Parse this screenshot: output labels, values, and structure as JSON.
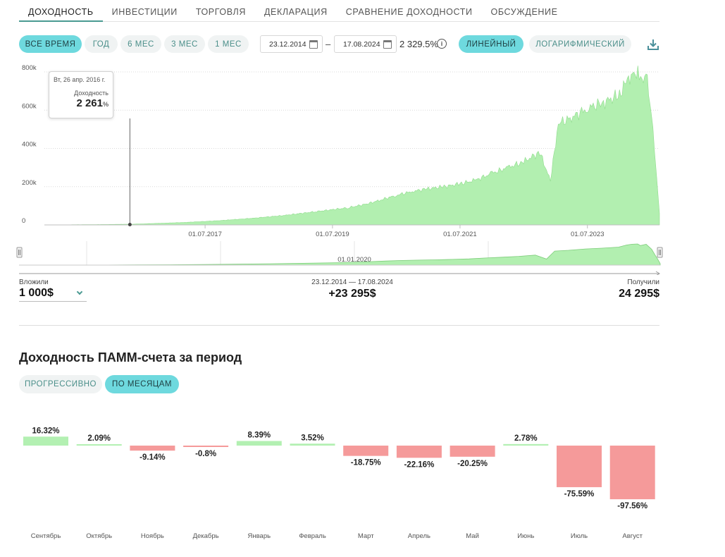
{
  "tabs": [
    {
      "label": "Доходность",
      "active": true
    },
    {
      "label": "Инвестиции",
      "active": false
    },
    {
      "label": "Торговля",
      "active": false
    },
    {
      "label": "Декларация",
      "active": false
    },
    {
      "label": "Сравнение доходности",
      "active": false
    },
    {
      "label": "Обсуждение",
      "active": false
    }
  ],
  "periods": [
    {
      "label": "Все время",
      "active": true
    },
    {
      "label": "Год",
      "active": false
    },
    {
      "label": "6 мес",
      "active": false
    },
    {
      "label": "3 мес",
      "active": false
    },
    {
      "label": "1 мес",
      "active": false
    }
  ],
  "date_range": {
    "from": "23.12.2014",
    "to": "17.08.2024",
    "dash": "–"
  },
  "total_return": "2 329.5%",
  "scale_modes": [
    {
      "label": "Линейный",
      "active": true
    },
    {
      "label": "Логарифмический",
      "active": false
    }
  ],
  "colors": {
    "accent": "#6ed9de",
    "positive": "#b3f0b2",
    "negative": "#f59a9a",
    "area": "#b2efb0",
    "area_line": "#8fdc8c"
  },
  "chart_data": {
    "type": "area",
    "y_ticks": [
      "800k",
      "600k",
      "400k",
      "200k",
      "0"
    ],
    "ylim": [
      0,
      800000
    ],
    "x_ticks": [
      "01.07.2017",
      "01.07.2019",
      "01.07.2021",
      "01.07.2023"
    ],
    "navigator_label": "01.01.2020",
    "series": [
      {
        "x": [
          "2014-12-23",
          "2015-06-01",
          "2016-01-01",
          "2016-04-26",
          "2016-10-01",
          "2017-04-01",
          "2017-10-01",
          "2018-04-01",
          "2018-10-01",
          "2019-04-01",
          "2019-10-01",
          "2020-01-15",
          "2020-04-01",
          "2020-07-01",
          "2020-10-01",
          "2021-01-01",
          "2021-04-01",
          "2021-07-01",
          "2021-10-01",
          "2022-01-01",
          "2022-04-01",
          "2022-07-01",
          "2022-10-01",
          "2022-12-01",
          "2023-01-15",
          "2023-04-01",
          "2023-07-01",
          "2023-10-01",
          "2024-01-01",
          "2024-02-15",
          "2024-03-15",
          "2024-04-15",
          "2024-05-01",
          "2024-06-01",
          "2024-07-01",
          "2024-07-20",
          "2024-08-01",
          "2024-08-17"
        ],
        "values": [
          0,
          1000,
          2500,
          3500,
          8000,
          14000,
          23000,
          35000,
          50000,
          70000,
          90000,
          110000,
          130000,
          155000,
          175000,
          190000,
          200000,
          215000,
          235000,
          270000,
          300000,
          330000,
          380000,
          230000,
          530000,
          560000,
          610000,
          640000,
          680000,
          760000,
          790000,
          800000,
          740000,
          790000,
          600000,
          380000,
          250000,
          60000
        ]
      }
    ]
  },
  "tooltip": {
    "date": "Вт, 26 апр. 2016 г.",
    "label": "Доходность",
    "value": "2 261",
    "unit": "%",
    "x": "2016-04-26"
  },
  "summary": {
    "invested_label": "Вложили",
    "invested_value": "1 000$",
    "period_label": "23.12.2014 — 17.08.2024",
    "profit_value": "+23 295$",
    "received_label": "Получили",
    "received_value": "24 295$"
  },
  "section_title": "Доходность ПАММ-счета за период",
  "bar_modes": [
    {
      "label": "Прогрессивно",
      "active": false
    },
    {
      "label": "По месяцам",
      "active": true
    }
  ],
  "bar_chart": {
    "type": "bar",
    "categories": [
      "Сентябрь",
      "Октябрь",
      "Ноябрь",
      "Декабрь",
      "Январь",
      "Февраль",
      "Март",
      "Апрель",
      "Май",
      "Июнь",
      "Июль",
      "Август"
    ],
    "values": [
      16.32,
      2.09,
      -9.14,
      -0.8,
      8.39,
      3.52,
      -18.75,
      -22.16,
      -20.25,
      2.78,
      -75.59,
      -97.56
    ],
    "labels": [
      "16.32%",
      "2.09%",
      "-9.14%",
      "-0.8%",
      "8.39%",
      "3.52%",
      "-18.75%",
      "-22.16%",
      "-20.25%",
      "2.78%",
      "-75.59%",
      "-97.56%"
    ]
  }
}
